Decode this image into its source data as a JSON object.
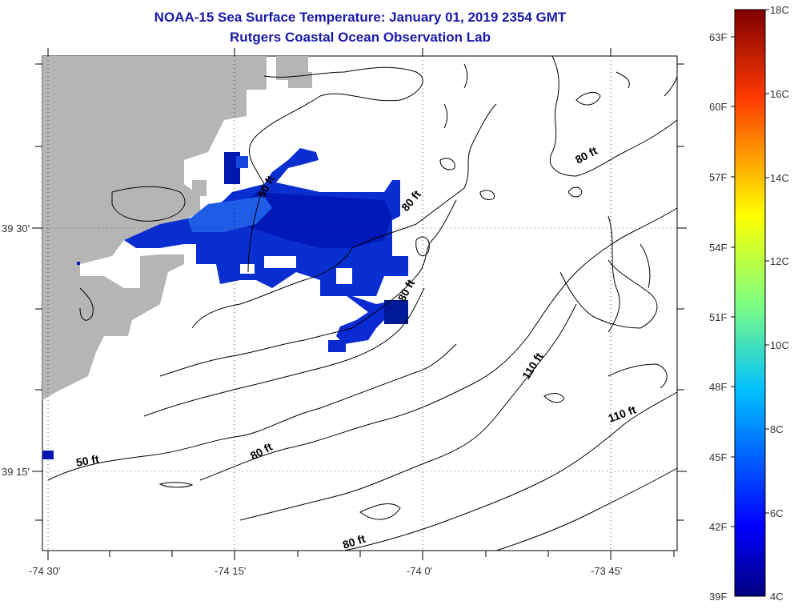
{
  "title": {
    "line1": "NOAA-15 Sea Surface Temperature:  January 01, 2019 2354 GMT",
    "line2": "Rutgers Coastal Ocean Observation Lab"
  },
  "map": {
    "lon_labels": [
      "-74 30'",
      "-74 15'",
      "-74 0'",
      "-73 45'"
    ],
    "lat_labels": [
      "39 30'",
      "39 15'"
    ],
    "contour_labels": [
      "50 ft",
      "80 ft",
      "80 ft",
      "80 ft",
      "110 ft",
      "110 ft",
      "50 ft",
      "80 ft",
      "80 ft"
    ],
    "land_color": "#b5b5b5"
  },
  "colorbar": {
    "fahrenheit": [
      "63F",
      "60F",
      "57F",
      "54F",
      "51F",
      "48F",
      "45F",
      "42F",
      "39F"
    ],
    "celsius": [
      "18C",
      "16C",
      "14C",
      "12C",
      "10C",
      "8C",
      "6C",
      "4C"
    ]
  }
}
